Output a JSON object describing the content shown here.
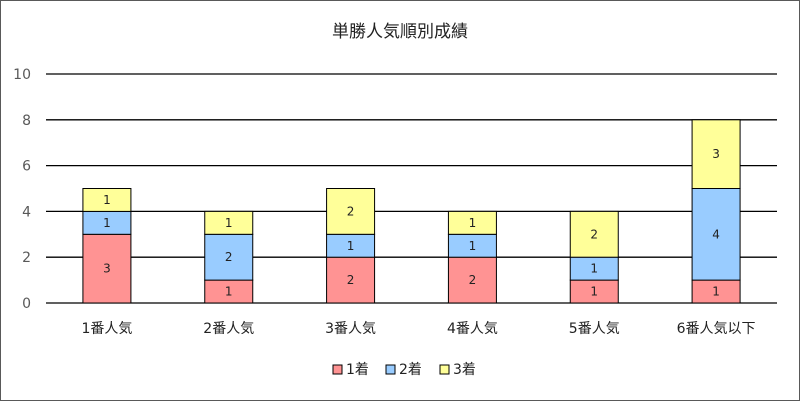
{
  "chart_data": {
    "type": "bar",
    "stacked": true,
    "title": "単勝人気順別成績",
    "categories": [
      "1番人気",
      "2番人気",
      "3番人気",
      "4番人気",
      "5番人気",
      "6番人気以下"
    ],
    "series": [
      {
        "name": "1着",
        "values": [
          3,
          1,
          2,
          2,
          1,
          1
        ],
        "color": "#ff9393"
      },
      {
        "name": "2着",
        "values": [
          1,
          2,
          1,
          1,
          1,
          4
        ],
        "color": "#99ccff"
      },
      {
        "name": "3着",
        "values": [
          1,
          1,
          2,
          1,
          2,
          3
        ],
        "color": "#ffff99"
      }
    ],
    "y_ticks": [
      "0",
      "2",
      "4",
      "6",
      "8",
      "10"
    ],
    "ylim": [
      0,
      10
    ],
    "grid": true,
    "legend": "bottom",
    "xlabel": "",
    "ylabel": ""
  }
}
